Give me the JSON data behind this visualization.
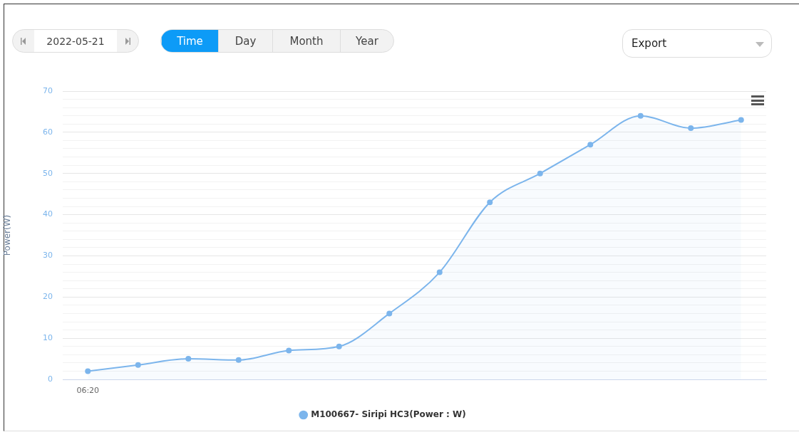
{
  "chart_data": {
    "type": "area",
    "ylabel": "Power(W)",
    "categories": [
      "06:20",
      null,
      null,
      null,
      null,
      null,
      null,
      null,
      null,
      null,
      null,
      null,
      null,
      null
    ],
    "series": [
      {
        "name": "M100667- Siripi HC3(Power : W)",
        "color": "#7cb5ec",
        "values": [
          2,
          3.5,
          5,
          4.7,
          7,
          8,
          16,
          26,
          43,
          50,
          57,
          64,
          61,
          63
        ]
      }
    ],
    "ylim": [
      0,
      70
    ],
    "yticks": [
      0,
      {
        "value": 2,
        "label": null
      },
      {
        "value": 4,
        "label": null
      },
      {
        "value": 6,
        "label": null
      },
      {
        "value": 8,
        "label": null
      },
      10,
      {
        "value": 12,
        "label": null
      },
      {
        "value": 14,
        "label": null
      },
      {
        "value": 16,
        "label": null
      },
      {
        "value": 18,
        "label": null
      },
      20,
      {
        "value": 22,
        "label": null
      },
      {
        "value": 24,
        "label": null
      },
      {
        "value": 26,
        "label": null
      },
      {
        "value": 28,
        "label": null
      },
      30,
      {
        "value": 32,
        "label": null
      },
      {
        "value": 34,
        "label": null
      },
      {
        "value": 36,
        "label": null
      },
      {
        "value": 38,
        "label": null
      },
      40,
      {
        "value": 42,
        "label": null
      },
      {
        "value": 44,
        "label": null
      },
      {
        "value": 46,
        "label": null
      },
      {
        "value": 48,
        "label": null
      },
      50,
      {
        "value": 52,
        "label": null
      },
      {
        "value": 54,
        "label": null
      },
      {
        "value": 56,
        "label": null
      },
      {
        "value": 58,
        "label": null
      },
      60,
      {
        "value": 62,
        "label": null
      },
      {
        "value": 64,
        "label": null
      },
      {
        "value": 66,
        "label": null
      },
      {
        "value": 68,
        "label": null
      },
      70
    ],
    "grid": "y",
    "legend": "bottom",
    "marker": "circle",
    "line_style": "solid",
    "annotations": [
      "2022-05-21",
      "Time",
      "Day",
      "Month",
      "Year",
      "Export"
    ]
  }
}
